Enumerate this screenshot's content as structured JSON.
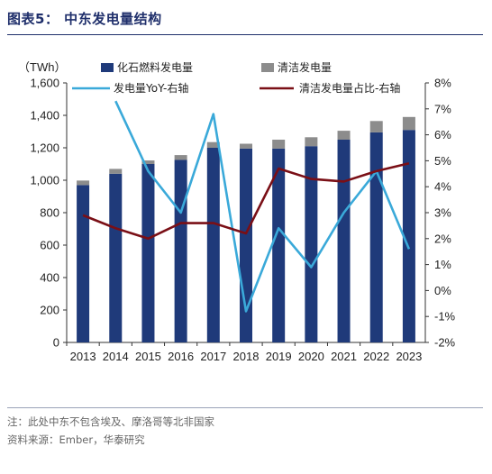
{
  "header": {
    "title": "图表5：  中东发电量结构"
  },
  "notes": {
    "note": "注：此处中东不包含埃及、摩洛哥等北非国家",
    "source": "资料来源：Ember，华泰研究"
  },
  "chart_data": {
    "type": "bar",
    "categories": [
      "2013",
      "2014",
      "2015",
      "2016",
      "2017",
      "2018",
      "2019",
      "2020",
      "2021",
      "2022",
      "2023"
    ],
    "left_axis": {
      "unit_label": "（TWh）",
      "ylim": [
        0,
        1600
      ],
      "ticks": [
        0,
        200,
        400,
        600,
        800,
        1000,
        1200,
        1400,
        1600
      ],
      "tick_labels": [
        "0",
        "200",
        "400",
        "600",
        "800",
        "1,000",
        "1,200",
        "1,400",
        "1,600"
      ]
    },
    "right_axis": {
      "ylim": [
        -2,
        8
      ],
      "ticks": [
        -2,
        -1,
        0,
        1,
        2,
        3,
        4,
        5,
        6,
        7,
        8
      ],
      "tick_labels": [
        "-2%",
        "-1%",
        "0%",
        "1%",
        "2%",
        "3%",
        "4%",
        "5%",
        "6%",
        "7%",
        "8%"
      ]
    },
    "series": [
      {
        "name": "化石燃料发电量",
        "type": "bar",
        "stacked": true,
        "axis": "left",
        "color": "#1f3a7a",
        "values": [
          970,
          1040,
          1100,
          1125,
          1200,
          1195,
          1195,
          1210,
          1250,
          1295,
          1310
        ]
      },
      {
        "name": "清洁发电量",
        "type": "bar",
        "stacked": true,
        "axis": "left",
        "color": "#8c8c8c",
        "values": [
          28,
          30,
          22,
          30,
          35,
          30,
          55,
          55,
          55,
          70,
          80
        ]
      },
      {
        "name": "发电量YoY-右轴",
        "type": "line",
        "axis": "right",
        "color": "#3aa9d9",
        "values": [
          null,
          7.3,
          4.6,
          3.0,
          6.8,
          -0.8,
          2.4,
          0.9,
          3.0,
          4.6,
          1.6
        ]
      },
      {
        "name": "清洁发电量占比-右轴",
        "type": "line",
        "axis": "right",
        "color": "#7a0f16",
        "values": [
          2.9,
          2.4,
          2.0,
          2.6,
          2.6,
          2.2,
          4.7,
          4.3,
          4.2,
          4.6,
          4.9
        ]
      }
    ],
    "legend_position": "top"
  }
}
